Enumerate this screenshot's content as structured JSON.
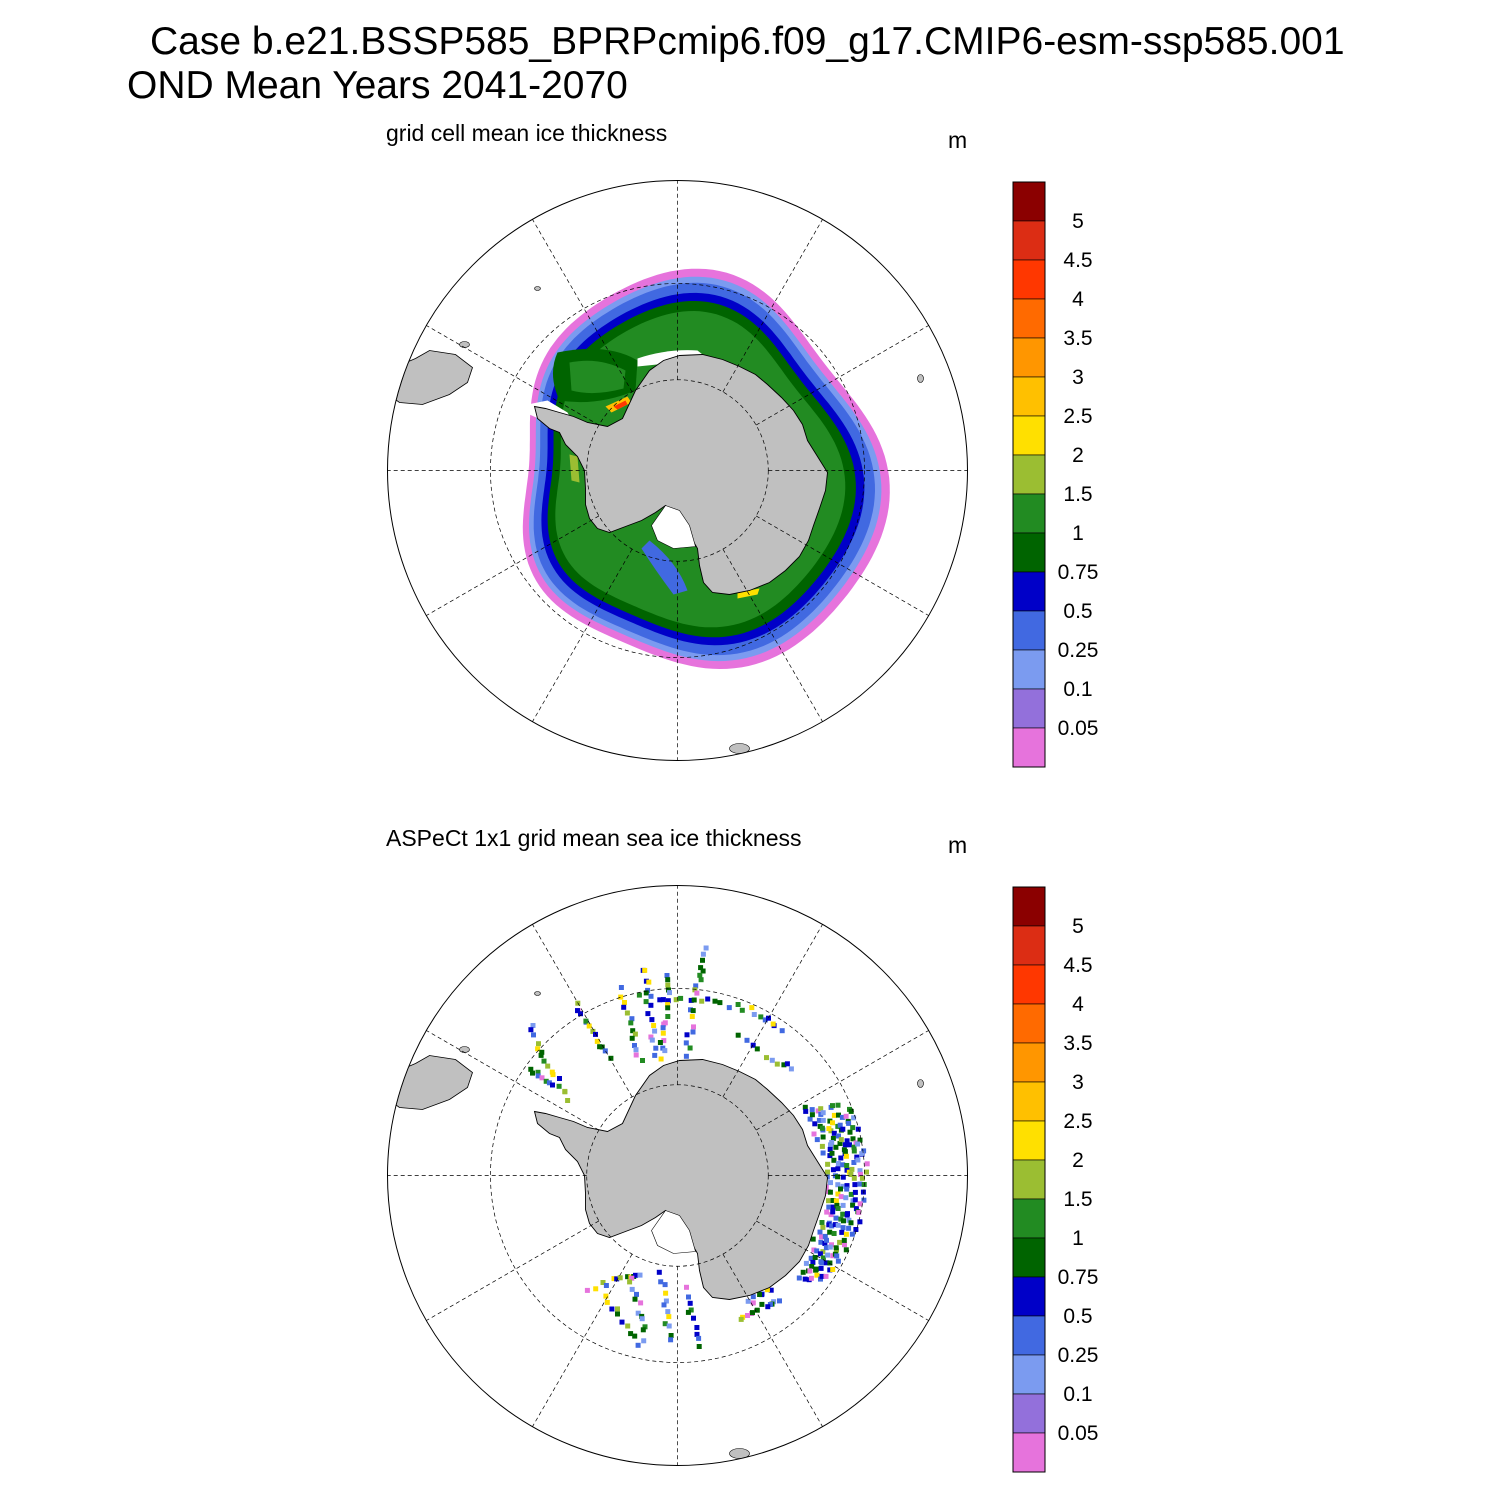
{
  "title": {
    "line1": "Case b.e21.BSSP585_BPRPcmip6.f09_g17.CMIP6-esm-ssp585.001",
    "line2": "OND Mean   Years 2041-2070"
  },
  "colorbar": {
    "units": "m",
    "levels": [
      "5",
      "4.5",
      "4",
      "3.5",
      "3",
      "2.5",
      "2",
      "1.5",
      "1",
      "0.75",
      "0.5",
      "0.25",
      "0.1",
      "0.05"
    ],
    "colors": [
      "#8b0000",
      "#dc2d14",
      "#ff3700",
      "#ff6a00",
      "#ff9600",
      "#ffc000",
      "#ffe000",
      "#9bbe32",
      "#228b22",
      "#006400",
      "#0000c8",
      "#4169e1",
      "#7b9bf0",
      "#9370db",
      "#e673dc"
    ]
  },
  "colors": {
    "land": "#c0c0c0",
    "coast": "#000000",
    "grid": "#000000"
  },
  "panels": [
    {
      "title": "grid cell mean ice thickness",
      "style": "field"
    },
    {
      "title": "ASPeCt 1x1 grid mean sea ice thickness",
      "style": "tracks"
    }
  ]
}
